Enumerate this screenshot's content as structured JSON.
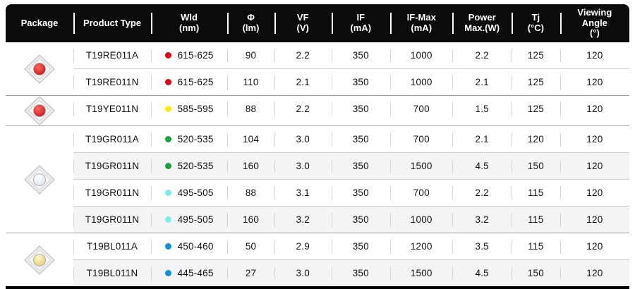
{
  "chart_data": {
    "type": "table",
    "title": "LED product specification table",
    "columns": [
      {
        "id": "package",
        "label": "Package",
        "sub": ""
      },
      {
        "id": "product",
        "label": "Product Type",
        "sub": ""
      },
      {
        "id": "wld",
        "label": "Wld",
        "sub": "(nm)"
      },
      {
        "id": "phi",
        "label": "Φ",
        "sub": "(lm)"
      },
      {
        "id": "vf",
        "label": "VF",
        "sub": "(V)"
      },
      {
        "id": "if",
        "label": "IF",
        "sub": "(mA)"
      },
      {
        "id": "ifmax",
        "label": "IF-Max",
        "sub": "(mA)"
      },
      {
        "id": "power",
        "label": "Power",
        "sub": "Max.(W)"
      },
      {
        "id": "tj",
        "label": "Tj",
        "sub": "(°C)"
      },
      {
        "id": "angle",
        "label": "Viewing Angle",
        "sub": "(°)"
      }
    ],
    "rows": [
      {
        "product": "T19RE011A",
        "dot": "#e30016",
        "wld": "615-625",
        "phi": "90",
        "vf": "2.2",
        "if": "350",
        "ifmax": "1000",
        "power": "2.2",
        "tj": "125",
        "angle": "120",
        "shaded": false
      },
      {
        "product": "T19RE011N",
        "dot": "#e30016",
        "wld": "615-625",
        "phi": "110",
        "vf": "2.1",
        "if": "350",
        "ifmax": "1000",
        "power": "2.1",
        "tj": "125",
        "angle": "120",
        "shaded": false
      },
      {
        "product": "T19YE011N",
        "dot": "#ffec00",
        "wld": "585-595",
        "phi": "88",
        "vf": "2.2",
        "if": "350",
        "ifmax": "700",
        "power": "1.5",
        "tj": "125",
        "angle": "120",
        "shaded": false
      },
      {
        "product": "T19GR011A",
        "dot": "#1aa23c",
        "wld": "520-535",
        "phi": "104",
        "vf": "3.0",
        "if": "350",
        "ifmax": "700",
        "power": "2.1",
        "tj": "120",
        "angle": "120",
        "shaded": false
      },
      {
        "product": "T19GR011N",
        "dot": "#1aa23c",
        "wld": "520-535",
        "phi": "160",
        "vf": "3.0",
        "if": "350",
        "ifmax": "1500",
        "power": "4.5",
        "tj": "150",
        "angle": "120",
        "shaded": true
      },
      {
        "product": "T19GR011N",
        "dot": "#7fefe6",
        "wld": "495-505",
        "phi": "88",
        "vf": "3.1",
        "if": "350",
        "ifmax": "700",
        "power": "2.2",
        "tj": "115",
        "angle": "120",
        "shaded": false
      },
      {
        "product": "T19GR011N",
        "dot": "#7fefe6",
        "wld": "495-505",
        "phi": "160",
        "vf": "3.2",
        "if": "350",
        "ifmax": "1000",
        "power": "3.2",
        "tj": "115",
        "angle": "120",
        "shaded": true
      },
      {
        "product": "T19BL011A",
        "dot": "#0f93d2",
        "wld": "450-460",
        "phi": "50",
        "vf": "2.9",
        "if": "350",
        "ifmax": "1200",
        "power": "3.5",
        "tj": "115",
        "angle": "120",
        "shaded": false
      },
      {
        "product": "T19BL011N",
        "dot": "#0f93d2",
        "wld": "445-465",
        "phi": "27",
        "vf": "3.0",
        "if": "350",
        "ifmax": "1500",
        "power": "4.5",
        "tj": "150",
        "angle": "120",
        "shaded": true
      }
    ],
    "groups": [
      {
        "package_name": "red-ceramic-led-package",
        "dome": "#cf1420",
        "dome_light": "#ff6a5a",
        "row_indexes": [
          0,
          1
        ]
      },
      {
        "package_name": "red-ceramic-led-package",
        "dome": "#cf1420",
        "dome_light": "#ff6a5a",
        "row_indexes": [
          2
        ]
      },
      {
        "package_name": "white-ceramic-led-package",
        "dome": "#dbe2e9",
        "dome_light": "#ffffff",
        "row_indexes": [
          3,
          4,
          5,
          6
        ]
      },
      {
        "package_name": "warm-ceramic-led-package",
        "dome": "#e3cc6e",
        "dome_light": "#fdf7cf",
        "row_indexes": [
          7,
          8
        ]
      }
    ],
    "colors": {
      "header_bg": "#0b0b0b",
      "header_text": "#ffffff",
      "row_shaded_bg": "#f4f4f6",
      "group_divider": "#9f9fa2",
      "row_divider": "#cfcfd2",
      "bottom_border": "#000000"
    }
  }
}
